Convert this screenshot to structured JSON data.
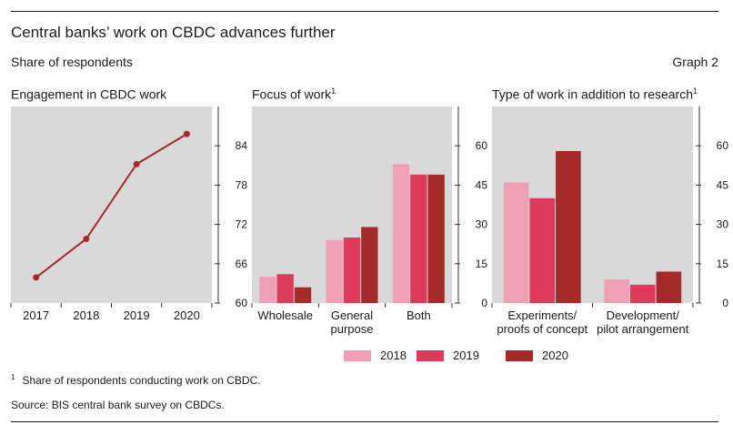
{
  "header": {
    "title": "Central banks’ work on CBDC advances further",
    "subtitle": "Share of respondents",
    "graph_number": "Graph 2"
  },
  "colors": {
    "panel_bg": "#d9d9d9",
    "y2018": "#f0a0b4",
    "y2019": "#de3a5a",
    "y2020": "#a52a2a"
  },
  "chart_data": [
    {
      "type": "line",
      "title": "Engagement in CBDC work",
      "title_sup": "",
      "x": [
        "2017",
        "2018",
        "2019",
        "2020"
      ],
      "series": [
        {
          "name": "Engagement",
          "values": [
            63.9,
            69.8,
            81.2,
            85.8
          ]
        }
      ],
      "ylim": [
        60,
        90
      ],
      "yticks": [
        60,
        66,
        72,
        78,
        84
      ]
    },
    {
      "type": "bar",
      "title": "Focus of work",
      "title_sup": "1",
      "categories": [
        "Wholesale",
        "General purpose",
        "Both"
      ],
      "category_lines": [
        [
          "Wholesale"
        ],
        [
          "General",
          "purpose"
        ],
        [
          "Both"
        ]
      ],
      "series": [
        {
          "name": "2018",
          "values": [
            10,
            24,
            53
          ]
        },
        {
          "name": "2019",
          "values": [
            11,
            25,
            49
          ]
        },
        {
          "name": "2020",
          "values": [
            6,
            29,
            49
          ]
        }
      ],
      "ylim": [
        0,
        75
      ],
      "yticks": [
        0,
        15,
        30,
        45,
        60
      ]
    },
    {
      "type": "bar",
      "title": "Type of work in addition to research",
      "title_sup": "1",
      "categories": [
        "Experiments/ proofs of concept",
        "Development/ pilot arrangement"
      ],
      "category_lines": [
        [
          "Experiments/",
          "proofs of concept"
        ],
        [
          "Development/",
          "pilot arrangement"
        ]
      ],
      "series": [
        {
          "name": "2018",
          "values": [
            46,
            9
          ]
        },
        {
          "name": "2019",
          "values": [
            40,
            7
          ]
        },
        {
          "name": "2020",
          "values": [
            58,
            12
          ]
        }
      ],
      "ylim": [
        0,
        75
      ],
      "yticks": [
        0,
        15,
        30,
        45,
        60
      ]
    }
  ],
  "legend": [
    {
      "label": "2018",
      "color": "#f0a0b4"
    },
    {
      "label": "2019",
      "color": "#de3a5a"
    },
    {
      "label": "2020",
      "color": "#a52a2a"
    }
  ],
  "notes": {
    "footnote_marker": "1",
    "footnote": "Share of respondents conducting work on CBDC.",
    "source": "Source: BIS central bank survey on CBDCs."
  }
}
